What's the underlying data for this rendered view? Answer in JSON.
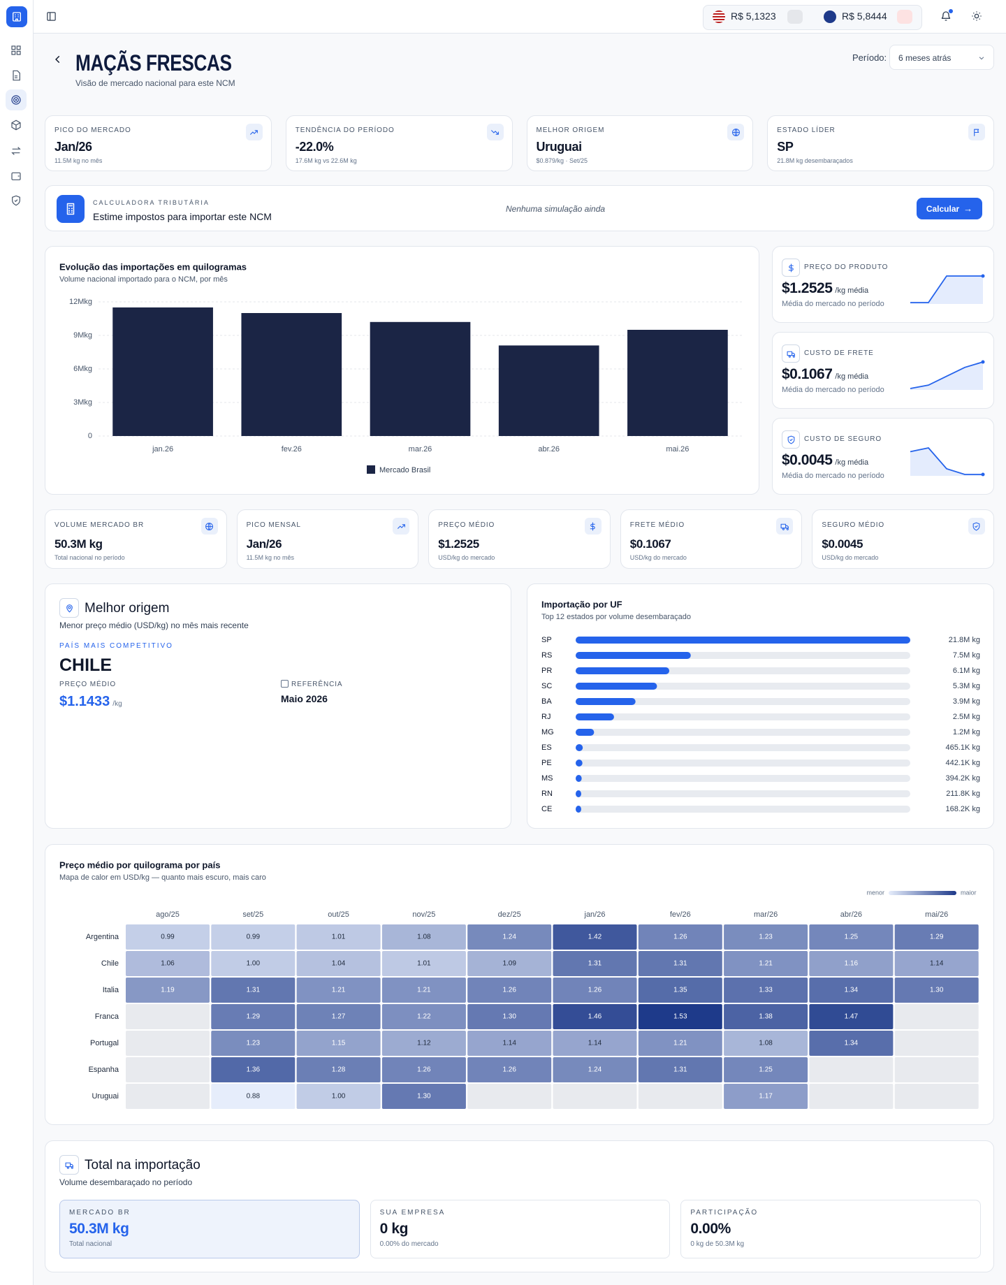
{
  "topbar": {
    "rates": [
      "R$ 5,1323",
      "R$ 5,8444"
    ]
  },
  "header": {
    "title": "MAÇÃS FRESCAS",
    "subtitle": "Visão de mercado nacional para este NCM",
    "period_label": "Período:",
    "period_value": "6 meses atrás"
  },
  "kpis": [
    {
      "label": "PICO DO MERCADO",
      "value": "Jan/26",
      "note": "11.5M kg no mês"
    },
    {
      "label": "TENDÊNCIA DO PERÍODO",
      "value": "-22.0%",
      "note": "17.6M kg vs 22.6M kg"
    },
    {
      "label": "MELHOR ORIGEM",
      "value": "Uruguai",
      "note": "$0.879/kg · Set/25"
    },
    {
      "label": "ESTADO LÍDER",
      "value": "SP",
      "note": "21.8M kg desembaraçados"
    }
  ],
  "calculator": {
    "label": "CALCULADORA TRIBUTÁRIA",
    "title": "Estime impostos para importar este NCM",
    "status": "Nenhuma simulação ainda",
    "button": "Calcular"
  },
  "cost_cards": [
    {
      "label": "PREÇO DO PRODUTO",
      "value": "$1.2525",
      "unit": "/kg média",
      "note": "Média do mercado no período",
      "color": "#2563eb",
      "trend": [
        1.252,
        1.252,
        1.253,
        1.253,
        1.253
      ]
    },
    {
      "label": "CUSTO DE FRETE",
      "value": "$0.1067",
      "unit": "/kg média",
      "note": "Média do mercado no período",
      "color": "#2563eb",
      "trend": [
        0.088,
        0.093,
        0.106,
        0.119,
        0.127
      ]
    },
    {
      "label": "CUSTO DE SEGURO",
      "value": "$0.0045",
      "unit": "/kg média",
      "note": "Média do mercado no período",
      "color": "#2563eb",
      "trend": [
        0.0051,
        0.0053,
        0.0042,
        0.0039,
        0.0039
      ]
    }
  ],
  "metrics": [
    {
      "label": "VOLUME MERCADO BR",
      "value": "50.3M kg",
      "note": "Total nacional no período"
    },
    {
      "label": "PICO MENSAL",
      "value": "Jan/26",
      "note": "11.5M kg no mês"
    },
    {
      "label": "PREÇO MÉDIO",
      "value": "$1.2525",
      "note": "USD/kg do mercado"
    },
    {
      "label": "FRETE MÉDIO",
      "value": "$0.1067",
      "note": "USD/kg do mercado"
    },
    {
      "label": "SEGURO MÉDIO",
      "value": "$0.0045",
      "note": "USD/kg do mercado"
    }
  ],
  "best_origin": {
    "title": "Melhor origem",
    "subtitle": "Menor preço médio (USD/kg) no mês mais recente",
    "country_label": "PAÍS MAIS COMPETITIVO",
    "country": "CHILE",
    "price_label": "PREÇO MÉDIO",
    "price": "$1.1433",
    "price_unit": "/kg",
    "reference_label": "REFERÊNCIA",
    "reference": "Maio 2026"
  },
  "chart_data": [
    {
      "type": "bar",
      "title": "Evolução das importações em quilogramas",
      "subtitle": "Volume nacional importado para o NCM, por mês",
      "categories": [
        "jan.26",
        "fev.26",
        "mar.26",
        "abr.26",
        "mai.26"
      ],
      "series": [
        {
          "name": "Mercado Brasil",
          "color": "#1b2545",
          "values": [
            11500000,
            11000000,
            10200000,
            8100000,
            9500000
          ]
        }
      ],
      "ylim": [
        0,
        12000000
      ],
      "yticks": [
        0,
        {
          "value": 3000000,
          "label": "3Mkg"
        },
        {
          "value": 6000000,
          "label": "6Mkg"
        },
        {
          "value": 9000000,
          "label": "9Mkg"
        },
        {
          "value": 12000000,
          "label": "12Mkg"
        }
      ],
      "grid": true
    },
    {
      "type": "hbar",
      "title": "Importação por UF",
      "subtitle": "Top 12 estados por volume desembaraçado",
      "categories": [
        "SP",
        "RS",
        "PR",
        "SC",
        "BA",
        "RJ",
        "MG",
        "ES",
        "PE",
        "MS",
        "RN",
        "CE"
      ],
      "values": [
        21800000,
        7500000,
        6100000,
        5300000,
        3900000,
        2500000,
        1200000,
        465100,
        442100,
        394200,
        211800,
        168200
      ],
      "value_labels": [
        "21.8M kg",
        "7.5M kg",
        "6.1M kg",
        "5.3M kg",
        "3.9M kg",
        "2.5M kg",
        "1.2M kg",
        "465.1K kg",
        "442.1K kg",
        "394.2K kg",
        "211.8K kg",
        "168.2K kg"
      ],
      "color": "#2563eb"
    },
    {
      "type": "heatmap",
      "title": "Preço médio por quilograma por país",
      "subtitle": "Mapa de calor em USD/kg — quanto mais escuro, mais caro",
      "x": [
        "ago/25",
        "set/25",
        "out/25",
        "nov/25",
        "dez/25",
        "jan/26",
        "fev/26",
        "mar/26",
        "abr/26",
        "mai/26"
      ],
      "y": [
        "Argentina",
        "Chile",
        "Italia",
        "Franca",
        "Portugal",
        "Espanha",
        "Uruguai"
      ],
      "values": [
        [
          0.99,
          0.99,
          1.01,
          1.08,
          1.24,
          1.42,
          1.26,
          1.23,
          1.25,
          1.29
        ],
        [
          1.06,
          1.0,
          1.04,
          1.01,
          1.09,
          1.31,
          1.31,
          1.21,
          1.16,
          1.14
        ],
        [
          1.19,
          1.31,
          1.21,
          1.21,
          1.26,
          1.26,
          1.35,
          1.33,
          1.34,
          1.3
        ],
        [
          null,
          1.29,
          1.27,
          1.22,
          1.3,
          1.46,
          1.53,
          1.38,
          1.47,
          null
        ],
        [
          null,
          1.23,
          1.15,
          1.12,
          1.14,
          1.14,
          1.21,
          1.08,
          1.34,
          null
        ],
        [
          null,
          1.36,
          1.28,
          1.26,
          1.26,
          1.24,
          1.31,
          1.25,
          null,
          null
        ],
        [
          null,
          0.88,
          1.0,
          1.3,
          null,
          null,
          null,
          1.17,
          null,
          null
        ]
      ],
      "value_labels": [
        [
          "0.99",
          "0.99",
          "1.01",
          "1.08",
          "1.24",
          "1.42",
          "1.26",
          "1.23",
          "1.25",
          "1.29"
        ],
        [
          "1.06",
          "1.00",
          "1.04",
          "1.01",
          "1.09",
          "1.31",
          "1.31",
          "1.21",
          "1.16",
          "1.14"
        ],
        [
          "1.19",
          "1.31",
          "1.21",
          "1.21",
          "1.26",
          "1.26",
          "1.35",
          "1.33",
          "1.34",
          "1.30"
        ],
        [
          null,
          "1.29",
          "1.27",
          "1.22",
          "1.30",
          "1.46",
          "1.53",
          "1.38",
          "1.47",
          null
        ],
        [
          null,
          "1.23",
          "1.15",
          "1.12",
          "1.14",
          "1.14",
          "1.21",
          "1.08",
          "1.34",
          null
        ],
        [
          null,
          "1.36",
          "1.28",
          "1.26",
          "1.26",
          "1.24",
          "1.31",
          "1.25",
          null,
          null
        ],
        [
          null,
          "0.88",
          "1.00",
          "1.30",
          null,
          null,
          null,
          "1.17",
          null,
          null
        ]
      ],
      "legend_labels": [
        "menor",
        "maior"
      ],
      "colors": [
        "#e6edfb",
        "#1e3a8a"
      ]
    }
  ],
  "total": {
    "title": "Total na importação",
    "subtitle": "Volume desembaraçado no período",
    "cards": [
      {
        "label": "MERCADO BR",
        "value": "50.3M kg",
        "note": "Total nacional"
      },
      {
        "label": "SUA EMPRESA",
        "value": "0 kg",
        "note": "0.00% do mercado"
      },
      {
        "label": "PARTICIPAÇÃO",
        "value": "0.00%",
        "note": "0 kg de 50.3M kg"
      }
    ]
  }
}
